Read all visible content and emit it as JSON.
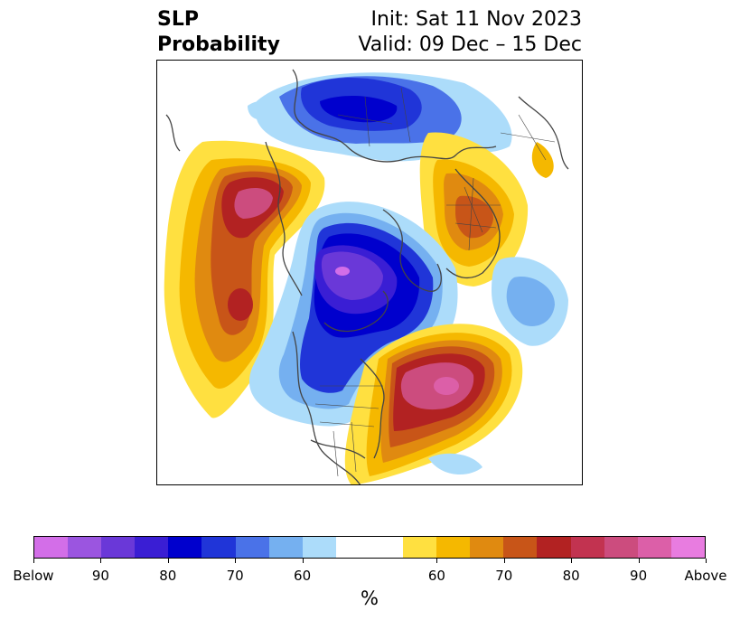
{
  "title": {
    "left_line1": "SLP",
    "left_line2": "Probability",
    "right_line1": "Init: Sat 11 Nov 2023",
    "right_line2": "Valid: 09 Dec – 15 Dec"
  },
  "colorbar": {
    "colors": [
      "#d36ee8",
      "#9b55e0",
      "#6a38d8",
      "#3a1ed4",
      "#0000cd",
      "#2035d8",
      "#4a72e8",
      "#75b0f0",
      "#acdcfa",
      "#ffffff",
      "#ffffff",
      "#ffe040",
      "#f5b800",
      "#e08a10",
      "#c85518",
      "#b22222",
      "#c23350",
      "#cc4c7e",
      "#dc5fa8",
      "#e87ce0"
    ],
    "ticks": [
      "Below",
      "90",
      "80",
      "70",
      "60",
      "60",
      "70",
      "80",
      "90",
      "Above"
    ],
    "unit": "%"
  },
  "palette": {
    "below_extreme": "#d36ee8",
    "below_strong": "#0000cd",
    "below_light": "#acdcfa",
    "above_light": "#ffe040",
    "above_strong": "#b22222",
    "above_extreme": "#e87ce0",
    "coastline": "#444444"
  }
}
